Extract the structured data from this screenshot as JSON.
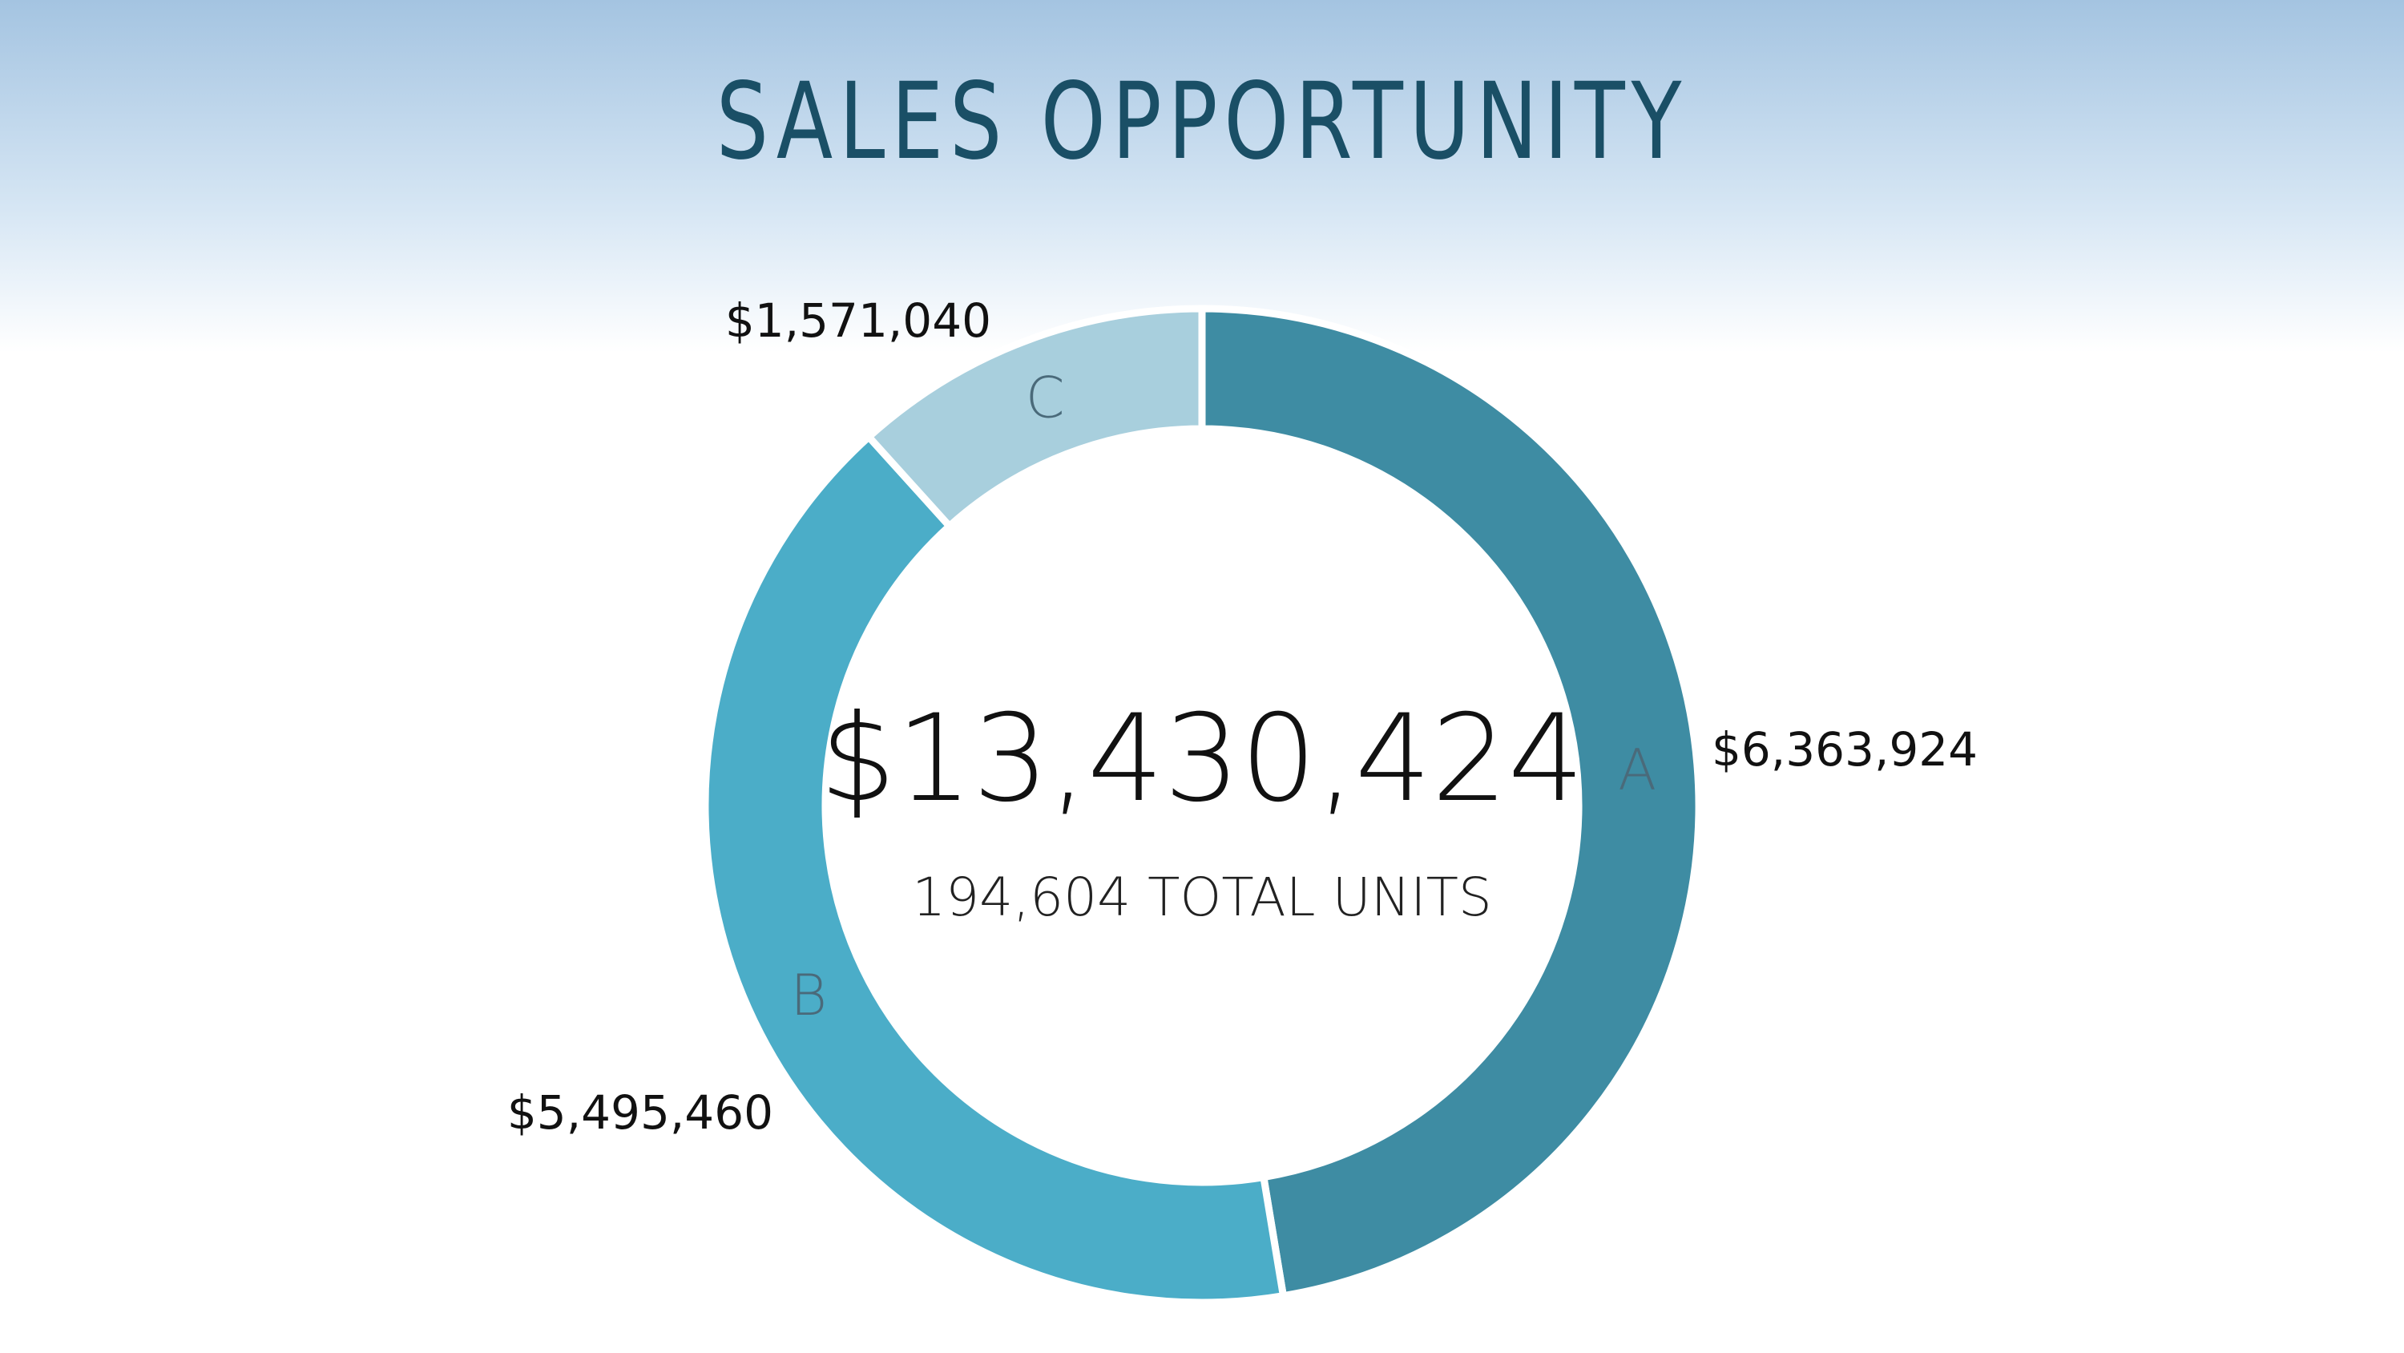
{
  "page": {
    "title": "SALES OPPORTUNITY"
  },
  "chart_data": {
    "type": "pie",
    "title": "SALES OPPORTUNITY",
    "donut": true,
    "center_value": "$13,430,424",
    "center_subtitle": "194,604 TOTAL UNITS",
    "slices": [
      {
        "name": "A",
        "value": 6363924,
        "value_label": "$6,363,924",
        "color": "#3e8ca3"
      },
      {
        "name": "B",
        "value": 5495460,
        "value_label": "$5,495,460",
        "color": "#4badc8"
      },
      {
        "name": "C",
        "value": 1571040,
        "value_label": "$1,571,040",
        "color": "#a8cfdd"
      }
    ],
    "start": "top",
    "direction": "clockwise"
  }
}
